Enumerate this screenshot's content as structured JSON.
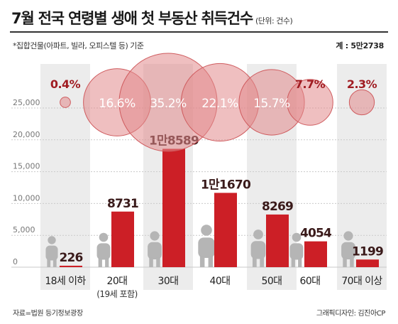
{
  "header": {
    "title": "7월 전국 연령별 생애 첫 부동산 취득건수",
    "unit": "(단위: 건수)",
    "note": "*집합건물(아파트, 빌라, 오피스텔 등) 기준",
    "total": "계 : 5만2738"
  },
  "footer": {
    "source": "자료=법원 등기정보광장",
    "credit": "그래픽디자인: 김진아CP"
  },
  "colors": {
    "bar": "#cc1f26",
    "bubble": "#e28a8c",
    "bubble_stroke": "#cf5b5e",
    "pct_text": "#a01c22",
    "band": "#ececec",
    "grid": "#c9c9c9",
    "figure": "#b5b5b5"
  },
  "chart_data": {
    "type": "bar",
    "categories": [
      "18세 이하",
      "20대",
      "30대",
      "40대",
      "50대",
      "60대",
      "70대 이상"
    ],
    "category_sublabels": [
      "",
      "(19세 포함)",
      "",
      "",
      "",
      "",
      ""
    ],
    "values": [
      226,
      8731,
      18589,
      11670,
      8269,
      4054,
      1199
    ],
    "value_labels": [
      "226",
      "8731",
      "1만8589",
      "1만1670",
      "8269",
      "4054",
      "1199"
    ],
    "shares": [
      0.4,
      16.6,
      35.2,
      22.1,
      15.7,
      7.7,
      2.3
    ],
    "share_labels": [
      "0.4%",
      "16.6%",
      "35.2%",
      "22.1%",
      "15.7%",
      "7.7%",
      "2.3%"
    ],
    "yticks": [
      0,
      5000,
      10000,
      15000,
      20000,
      25000
    ],
    "ytick_labels": [
      "0",
      "5,000",
      "10,000",
      "15,000",
      "20,000",
      "25,000"
    ],
    "ylim": [
      0,
      25000
    ],
    "grid": true
  }
}
